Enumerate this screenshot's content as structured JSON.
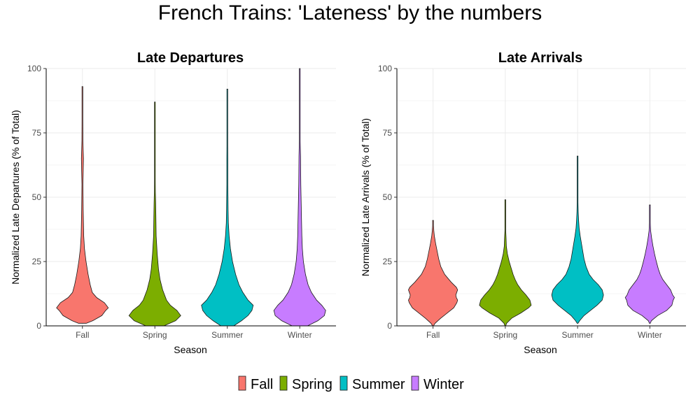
{
  "title": "French Trains: 'Lateness' by the numbers",
  "colors": {
    "Fall": "#F8766D",
    "Spring": "#7CAE00",
    "Summer": "#00BFC4",
    "Winter": "#C77CFF"
  },
  "legend": {
    "entries": [
      "Fall",
      "Spring",
      "Summer",
      "Winter"
    ],
    "position": "bottom"
  },
  "chart_data": [
    {
      "type": "violin",
      "title": "Late Departures",
      "xlabel": "Season",
      "ylabel": "Normalized Late Departures (% of Total)",
      "categories": [
        "Fall",
        "Spring",
        "Summer",
        "Winter"
      ],
      "ylim": [
        0,
        100
      ],
      "yticks": [
        0,
        25,
        50,
        75,
        100
      ],
      "grid": true,
      "series": [
        {
          "name": "Fall",
          "min": 1,
          "max": 93,
          "profile": [
            [
              1,
              0.15
            ],
            [
              2,
              0.4
            ],
            [
              4,
              0.75
            ],
            [
              6,
              0.9
            ],
            [
              7,
              1.0
            ],
            [
              9,
              0.85
            ],
            [
              11,
              0.55
            ],
            [
              13,
              0.38
            ],
            [
              16,
              0.3
            ],
            [
              20,
              0.22
            ],
            [
              25,
              0.14
            ],
            [
              30,
              0.08
            ],
            [
              35,
              0.05
            ],
            [
              40,
              0.04
            ],
            [
              45,
              0.03
            ],
            [
              50,
              0.025
            ],
            [
              55,
              0.02
            ],
            [
              60,
              0.03
            ],
            [
              65,
              0.04
            ],
            [
              68,
              0.03
            ],
            [
              72,
              0.02
            ],
            [
              80,
              0.005
            ],
            [
              93,
              0.003
            ]
          ]
        },
        {
          "name": "Spring",
          "min": 0,
          "max": 87,
          "profile": [
            [
              0,
              0.35
            ],
            [
              2,
              0.8
            ],
            [
              4,
              1.0
            ],
            [
              6,
              0.85
            ],
            [
              8,
              0.6
            ],
            [
              10,
              0.45
            ],
            [
              14,
              0.3
            ],
            [
              18,
              0.2
            ],
            [
              22,
              0.14
            ],
            [
              28,
              0.09
            ],
            [
              35,
              0.05
            ],
            [
              42,
              0.04
            ],
            [
              48,
              0.03
            ],
            [
              52,
              0.02
            ],
            [
              56,
              0.01
            ],
            [
              62,
              0.006
            ],
            [
              70,
              0.005
            ],
            [
              75,
              0.006
            ],
            [
              80,
              0.004
            ],
            [
              87,
              0.003
            ]
          ]
        },
        {
          "name": "Summer",
          "min": 0,
          "max": 92,
          "profile": [
            [
              0,
              0.25
            ],
            [
              2,
              0.55
            ],
            [
              4,
              0.8
            ],
            [
              6,
              0.95
            ],
            [
              8,
              1.0
            ],
            [
              10,
              0.8
            ],
            [
              13,
              0.6
            ],
            [
              16,
              0.45
            ],
            [
              20,
              0.32
            ],
            [
              25,
              0.2
            ],
            [
              30,
              0.12
            ],
            [
              35,
              0.07
            ],
            [
              40,
              0.04
            ],
            [
              45,
              0.03
            ],
            [
              50,
              0.025
            ],
            [
              55,
              0.02
            ],
            [
              60,
              0.02
            ],
            [
              65,
              0.02
            ],
            [
              70,
              0.015
            ],
            [
              75,
              0.008
            ],
            [
              80,
              0.005
            ],
            [
              92,
              0.003
            ]
          ]
        },
        {
          "name": "Winter",
          "min": 0,
          "max": 100,
          "profile": [
            [
              0,
              0.3
            ],
            [
              2,
              0.7
            ],
            [
              4,
              0.95
            ],
            [
              6,
              1.0
            ],
            [
              8,
              0.85
            ],
            [
              10,
              0.65
            ],
            [
              13,
              0.45
            ],
            [
              16,
              0.32
            ],
            [
              20,
              0.22
            ],
            [
              25,
              0.14
            ],
            [
              30,
              0.1
            ],
            [
              35,
              0.08
            ],
            [
              40,
              0.07
            ],
            [
              45,
              0.06
            ],
            [
              50,
              0.05
            ],
            [
              55,
              0.04
            ],
            [
              60,
              0.035
            ],
            [
              66,
              0.03
            ],
            [
              72,
              0.015
            ],
            [
              80,
              0.008
            ],
            [
              90,
              0.004
            ],
            [
              100,
              0.003
            ]
          ]
        }
      ]
    },
    {
      "type": "violin",
      "title": "Late Arrivals",
      "xlabel": "Season",
      "ylabel": "Normalized Late Arrivals (% of Total)",
      "categories": [
        "Fall",
        "Spring",
        "Summer",
        "Winter"
      ],
      "ylim": [
        0,
        100
      ],
      "yticks": [
        0,
        25,
        50,
        75,
        100
      ],
      "grid": true,
      "series": [
        {
          "name": "Fall",
          "min": 0,
          "max": 41,
          "profile": [
            [
              0,
              0.0
            ],
            [
              1,
              0.08
            ],
            [
              3,
              0.3
            ],
            [
              5,
              0.55
            ],
            [
              7,
              0.8
            ],
            [
              9,
              0.92
            ],
            [
              10,
              0.95
            ],
            [
              11,
              0.9
            ],
            [
              12,
              0.88
            ],
            [
              14,
              0.95
            ],
            [
              15,
              0.9
            ],
            [
              17,
              0.7
            ],
            [
              20,
              0.45
            ],
            [
              23,
              0.3
            ],
            [
              26,
              0.22
            ],
            [
              29,
              0.16
            ],
            [
              32,
              0.1
            ],
            [
              35,
              0.05
            ],
            [
              37,
              0.03
            ],
            [
              39,
              0.01
            ],
            [
              41,
              0.005
            ]
          ]
        },
        {
          "name": "Spring",
          "min": 0,
          "max": 49,
          "profile": [
            [
              0,
              0.0
            ],
            [
              1,
              0.05
            ],
            [
              3,
              0.25
            ],
            [
              5,
              0.6
            ],
            [
              7,
              0.9
            ],
            [
              8,
              1.0
            ],
            [
              10,
              0.95
            ],
            [
              12,
              0.8
            ],
            [
              14,
              0.62
            ],
            [
              16,
              0.48
            ],
            [
              18,
              0.38
            ],
            [
              20,
              0.3
            ],
            [
              22,
              0.24
            ],
            [
              25,
              0.15
            ],
            [
              28,
              0.08
            ],
            [
              31,
              0.04
            ],
            [
              34,
              0.03
            ],
            [
              37,
              0.01
            ],
            [
              40,
              0.005
            ],
            [
              45,
              0.004
            ],
            [
              49,
              0.003
            ]
          ]
        },
        {
          "name": "Summer",
          "min": 1,
          "max": 66,
          "profile": [
            [
              1,
              0.0
            ],
            [
              2,
              0.08
            ],
            [
              4,
              0.25
            ],
            [
              6,
              0.5
            ],
            [
              8,
              0.75
            ],
            [
              10,
              0.95
            ],
            [
              12,
              1.0
            ],
            [
              14,
              0.95
            ],
            [
              16,
              0.8
            ],
            [
              18,
              0.6
            ],
            [
              20,
              0.45
            ],
            [
              23,
              0.33
            ],
            [
              26,
              0.25
            ],
            [
              29,
              0.2
            ],
            [
              32,
              0.15
            ],
            [
              35,
              0.1
            ],
            [
              38,
              0.06
            ],
            [
              41,
              0.04
            ],
            [
              44,
              0.025
            ],
            [
              48,
              0.01
            ],
            [
              52,
              0.006
            ],
            [
              57,
              0.005
            ],
            [
              62,
              0.003
            ],
            [
              66,
              0.002
            ]
          ]
        },
        {
          "name": "Winter",
          "min": 1,
          "max": 47,
          "profile": [
            [
              1,
              0.0
            ],
            [
              2,
              0.06
            ],
            [
              4,
              0.3
            ],
            [
              6,
              0.65
            ],
            [
              8,
              0.85
            ],
            [
              10,
              0.9
            ],
            [
              11,
              0.95
            ],
            [
              12,
              0.88
            ],
            [
              14,
              0.8
            ],
            [
              16,
              0.65
            ],
            [
              18,
              0.5
            ],
            [
              20,
              0.4
            ],
            [
              22,
              0.33
            ],
            [
              25,
              0.25
            ],
            [
              28,
              0.18
            ],
            [
              31,
              0.12
            ],
            [
              34,
              0.07
            ],
            [
              37,
              0.03
            ],
            [
              40,
              0.015
            ],
            [
              43,
              0.008
            ],
            [
              47,
              0.004
            ]
          ]
        }
      ]
    }
  ]
}
